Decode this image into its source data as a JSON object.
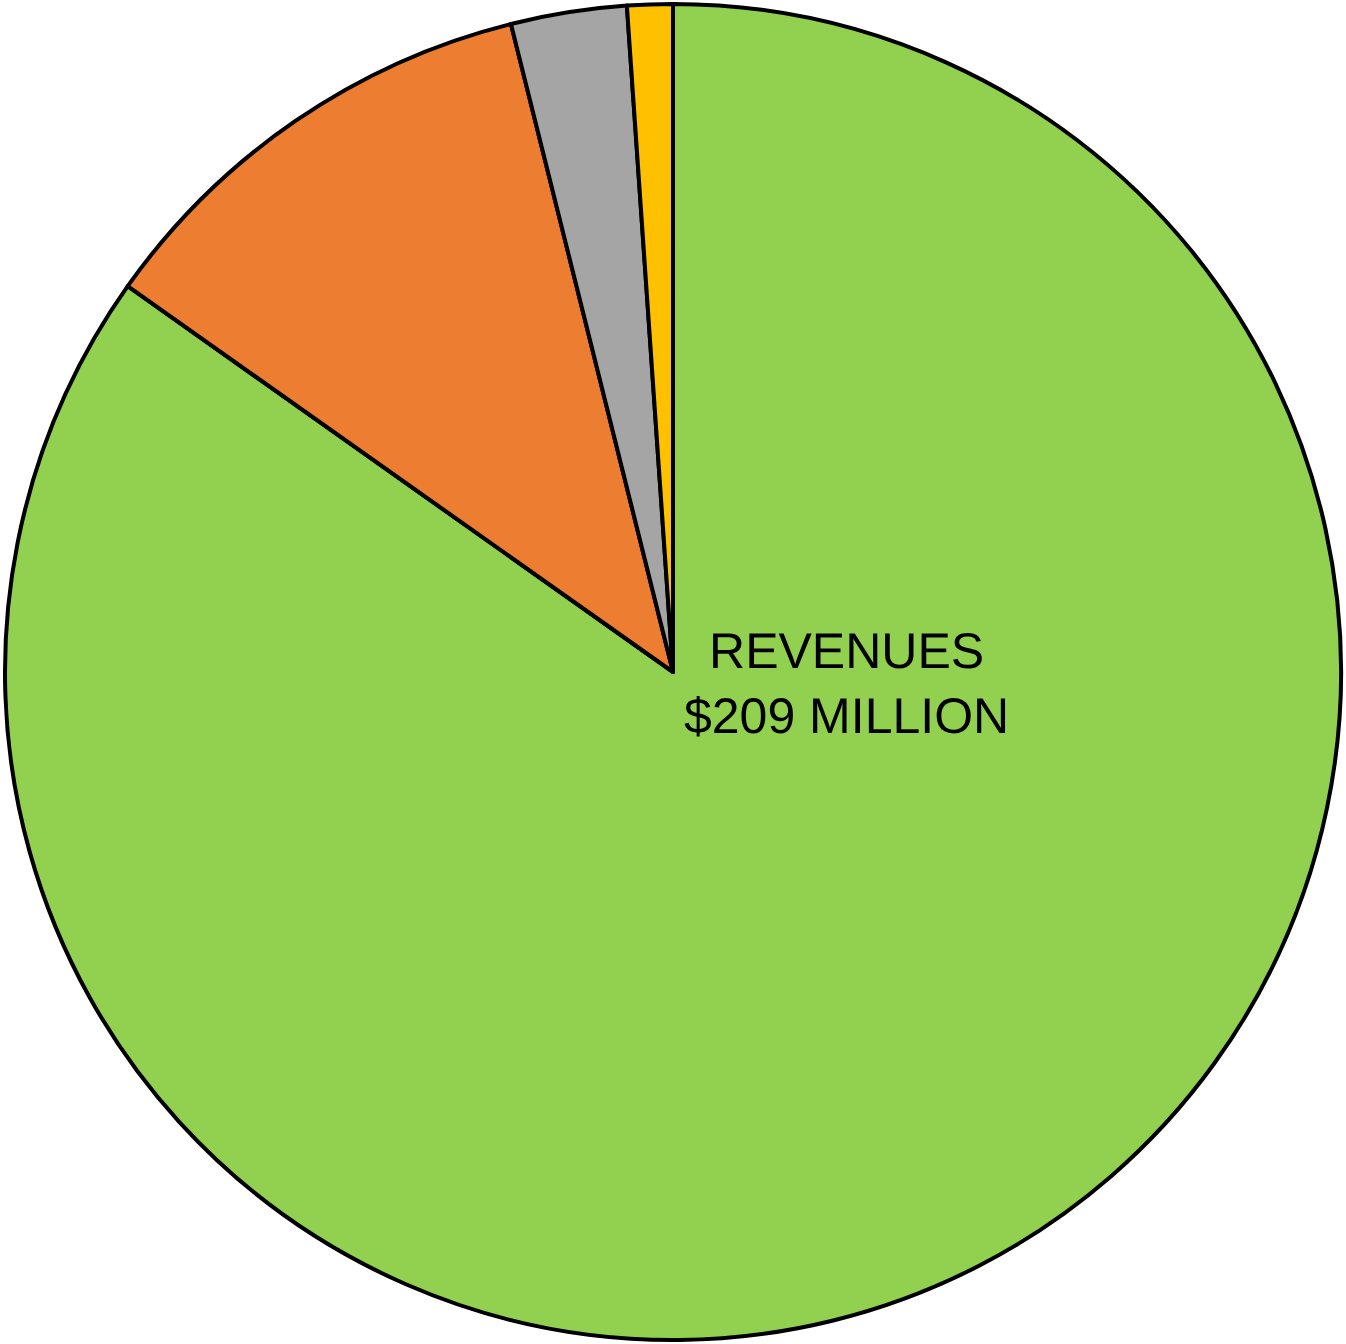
{
  "chart_data": {
    "type": "pie",
    "categories": [
      null,
      null,
      null,
      null
    ],
    "values": [
      84.8,
      11.3,
      2.8,
      1.1
    ],
    "colors": [
      "#92d050",
      "#ed7d31",
      "#a5a5a5",
      "#ffc000"
    ],
    "annotations": [
      "REVENUES\n$209 MILLION"
    ],
    "legend": false
  }
}
